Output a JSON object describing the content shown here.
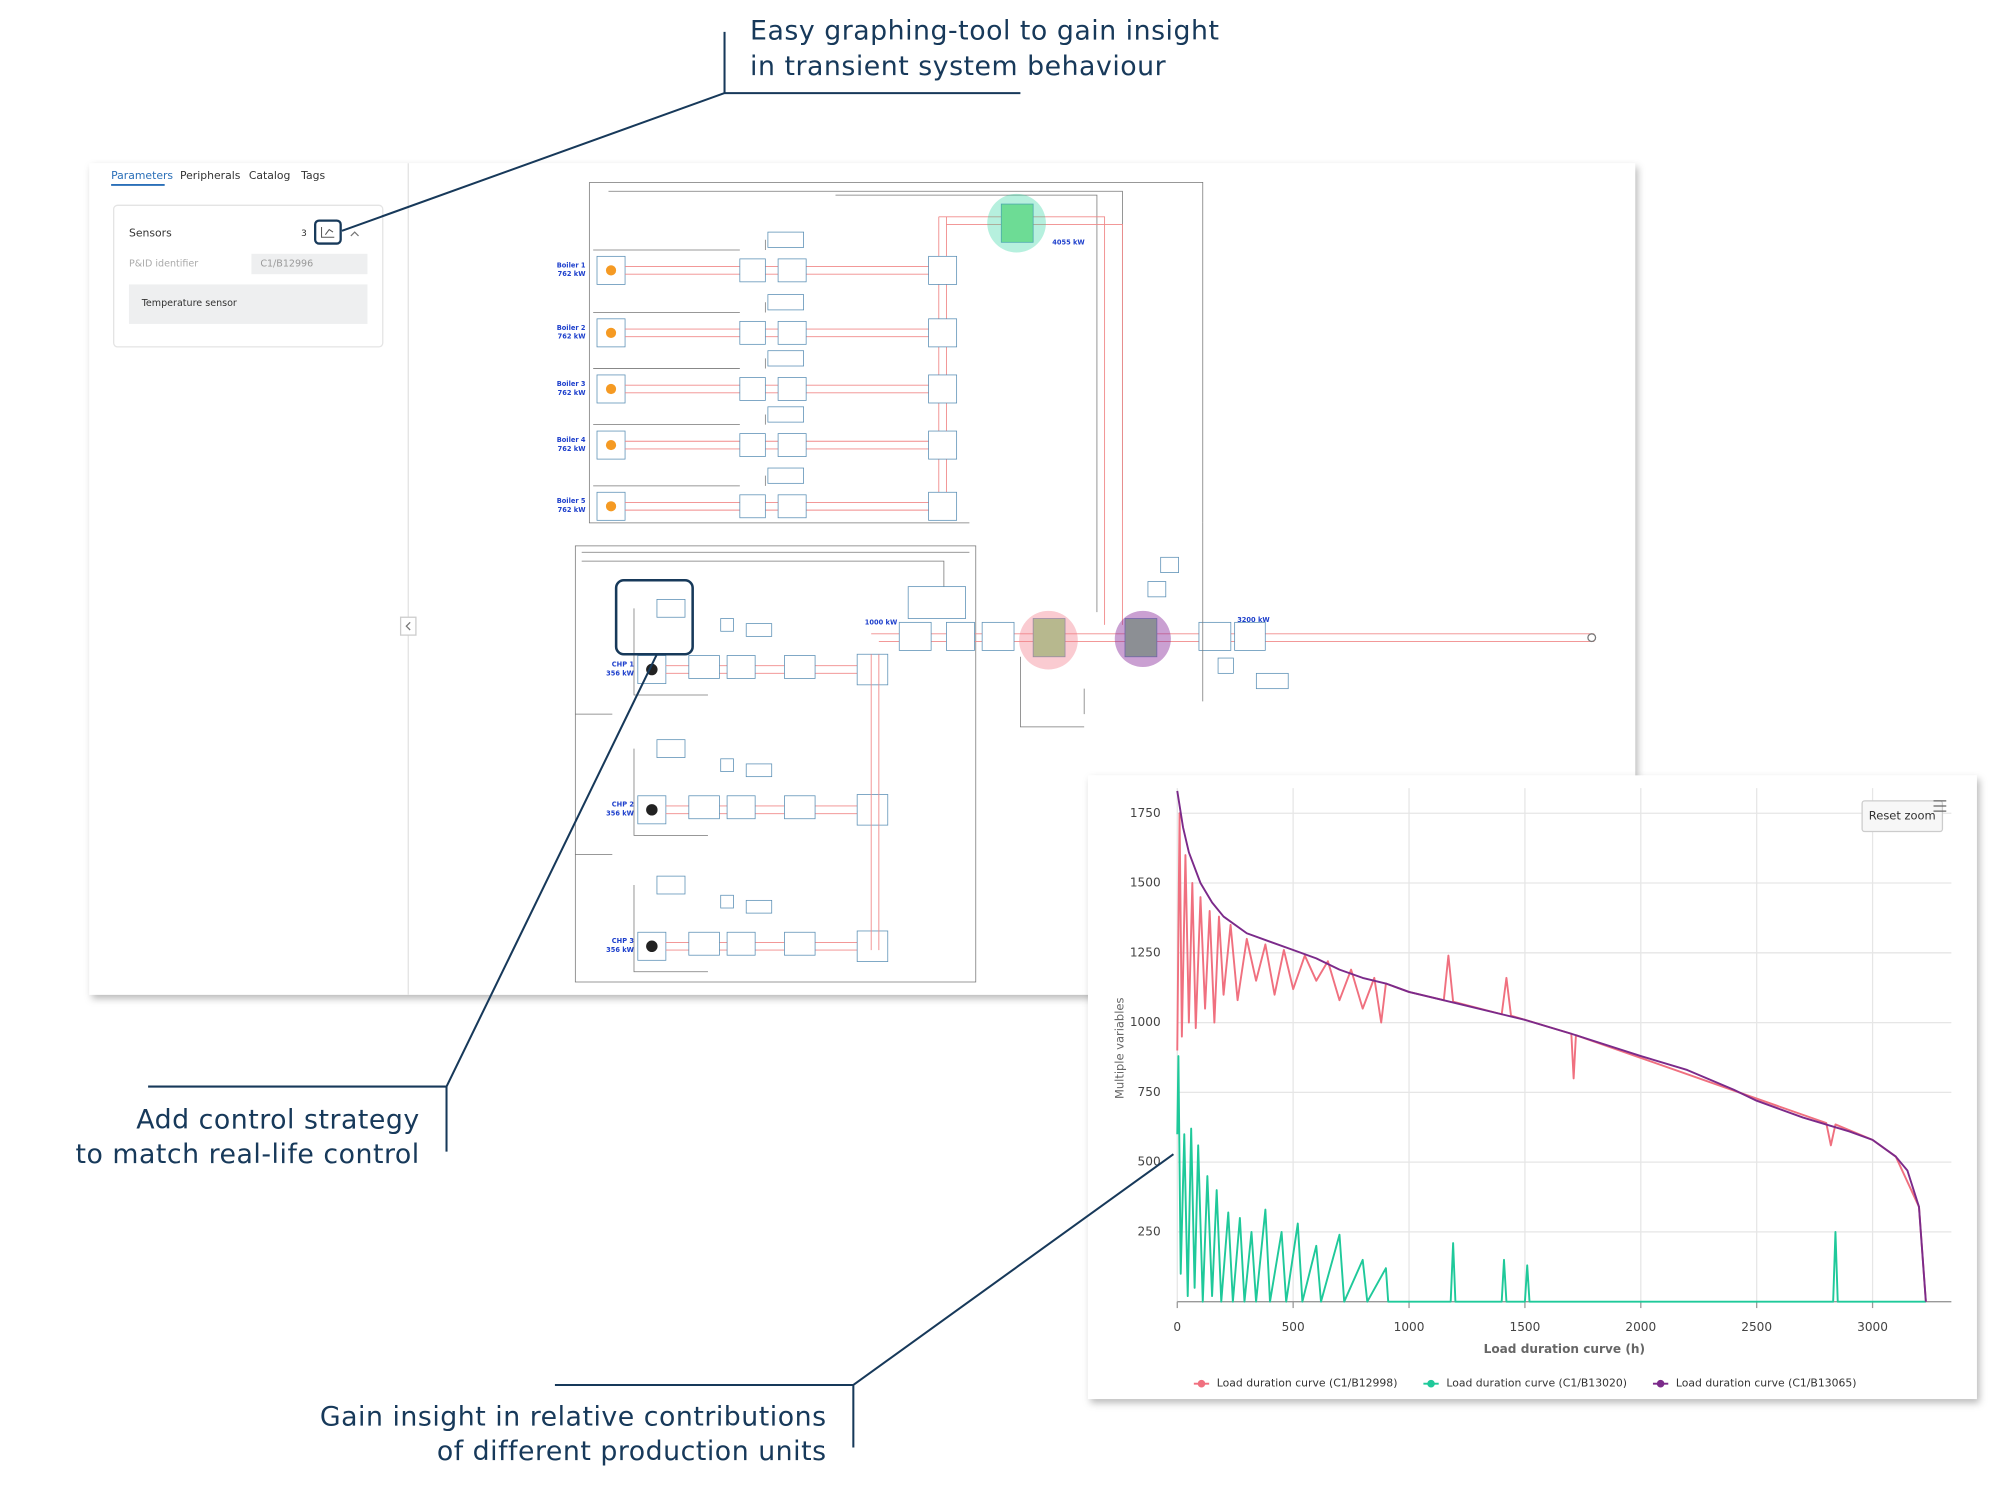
{
  "annotations": [
    {
      "lines": [
        "Easy graphing-tool to gain insight",
        "in transient system behaviour"
      ]
    },
    {
      "lines": [
        "Add control strategy",
        "to match real-life control"
      ]
    },
    {
      "lines": [
        "Gain insight in relative contributions",
        "of different production units"
      ]
    }
  ],
  "sidebar": {
    "tabs": [
      "Parameters",
      "Peripherals",
      "Catalog",
      "Tags"
    ],
    "section": "Sensors",
    "count": 3,
    "field_label": "P&ID identifier",
    "field_value": "C1/B12996",
    "item": "Temperature sensor"
  },
  "diagram": {
    "boilers": [
      {
        "name": "Boiler 1",
        "power": "762 kW"
      },
      {
        "name": "Boiler 2",
        "power": "762 kW"
      },
      {
        "name": "Boiler 3",
        "power": "762 kW"
      },
      {
        "name": "Boiler 4",
        "power": "762 kW"
      },
      {
        "name": "Boiler 5",
        "power": "762 kW"
      }
    ],
    "chps": [
      {
        "name": "CHP 1",
        "power": "356 kW"
      },
      {
        "name": "CHP 2",
        "power": "356 kW"
      },
      {
        "name": "CHP 3",
        "power": "356 kW"
      }
    ],
    "labels": [
      "4055 kW",
      "1000 kW",
      "3200 kW"
    ]
  },
  "chart_data": {
    "type": "line",
    "x_label": "Load duration curve (h)",
    "y_label": "Multiple variables",
    "reset_button": "Reset zoom",
    "grid": true,
    "legend": "bottom",
    "xlim": [
      0,
      3340
    ],
    "ylim": [
      0,
      1840
    ],
    "xticks": [
      0,
      500,
      1000,
      1500,
      2000,
      2500,
      3000
    ],
    "yticks": [
      250,
      500,
      750,
      1000,
      1250,
      1500,
      1750
    ],
    "series": [
      {
        "name": "Load duration curve (C1/B12998)",
        "color": "#f0707f",
        "x": [
          0,
          10,
          20,
          35,
          50,
          65,
          80,
          100,
          120,
          140,
          160,
          180,
          200,
          230,
          260,
          300,
          340,
          380,
          420,
          460,
          500,
          550,
          600,
          650,
          700,
          750,
          800,
          850,
          880,
          900,
          1000,
          1150,
          1170,
          1190,
          1400,
          1420,
          1440,
          1700,
          1710,
          1720,
          2800,
          2820,
          2840,
          3000,
          3100,
          3200,
          3230
        ],
        "values": [
          900,
          1750,
          950,
          1600,
          1000,
          1500,
          980,
          1450,
          1050,
          1400,
          1000,
          1380,
          1100,
          1350,
          1080,
          1300,
          1150,
          1280,
          1100,
          1260,
          1120,
          1240,
          1150,
          1220,
          1080,
          1190,
          1050,
          1160,
          1000,
          1140,
          1110,
          1080,
          1240,
          1075,
          1030,
          1160,
          1025,
          960,
          800,
          955,
          640,
          560,
          635,
          580,
          520,
          340,
          0
        ]
      },
      {
        "name": "Load duration curve (C1/B13020)",
        "color": "#1fc99a",
        "x": [
          0,
          5,
          15,
          30,
          45,
          60,
          75,
          90,
          110,
          130,
          150,
          170,
          190,
          220,
          240,
          270,
          290,
          320,
          340,
          380,
          400,
          450,
          470,
          520,
          540,
          600,
          620,
          700,
          720,
          800,
          820,
          900,
          910,
          1180,
          1190,
          1200,
          1400,
          1410,
          1420,
          1500,
          1510,
          1520,
          2830,
          2840,
          2850,
          3230
        ],
        "values": [
          600,
          880,
          100,
          600,
          20,
          620,
          50,
          560,
          0,
          450,
          20,
          400,
          0,
          320,
          0,
          300,
          0,
          250,
          0,
          330,
          0,
          250,
          0,
          280,
          0,
          200,
          0,
          240,
          0,
          150,
          0,
          120,
          0,
          0,
          210,
          0,
          0,
          150,
          0,
          0,
          130,
          0,
          0,
          250,
          0,
          0
        ]
      },
      {
        "name": "Load duration curve (C1/B13065)",
        "color": "#7b2a8a",
        "x": [
          0,
          25,
          50,
          100,
          150,
          200,
          300,
          400,
          500,
          600,
          700,
          800,
          900,
          1000,
          1200,
          1400,
          1500,
          1700,
          2000,
          2200,
          2400,
          2500,
          2700,
          2900,
          3000,
          3100,
          3150,
          3200,
          3230
        ],
        "values": [
          1830,
          1700,
          1610,
          1500,
          1430,
          1380,
          1320,
          1290,
          1260,
          1230,
          1190,
          1160,
          1140,
          1110,
          1070,
          1030,
          1010,
          960,
          880,
          830,
          760,
          720,
          660,
          610,
          580,
          520,
          470,
          340,
          0
        ]
      }
    ]
  }
}
